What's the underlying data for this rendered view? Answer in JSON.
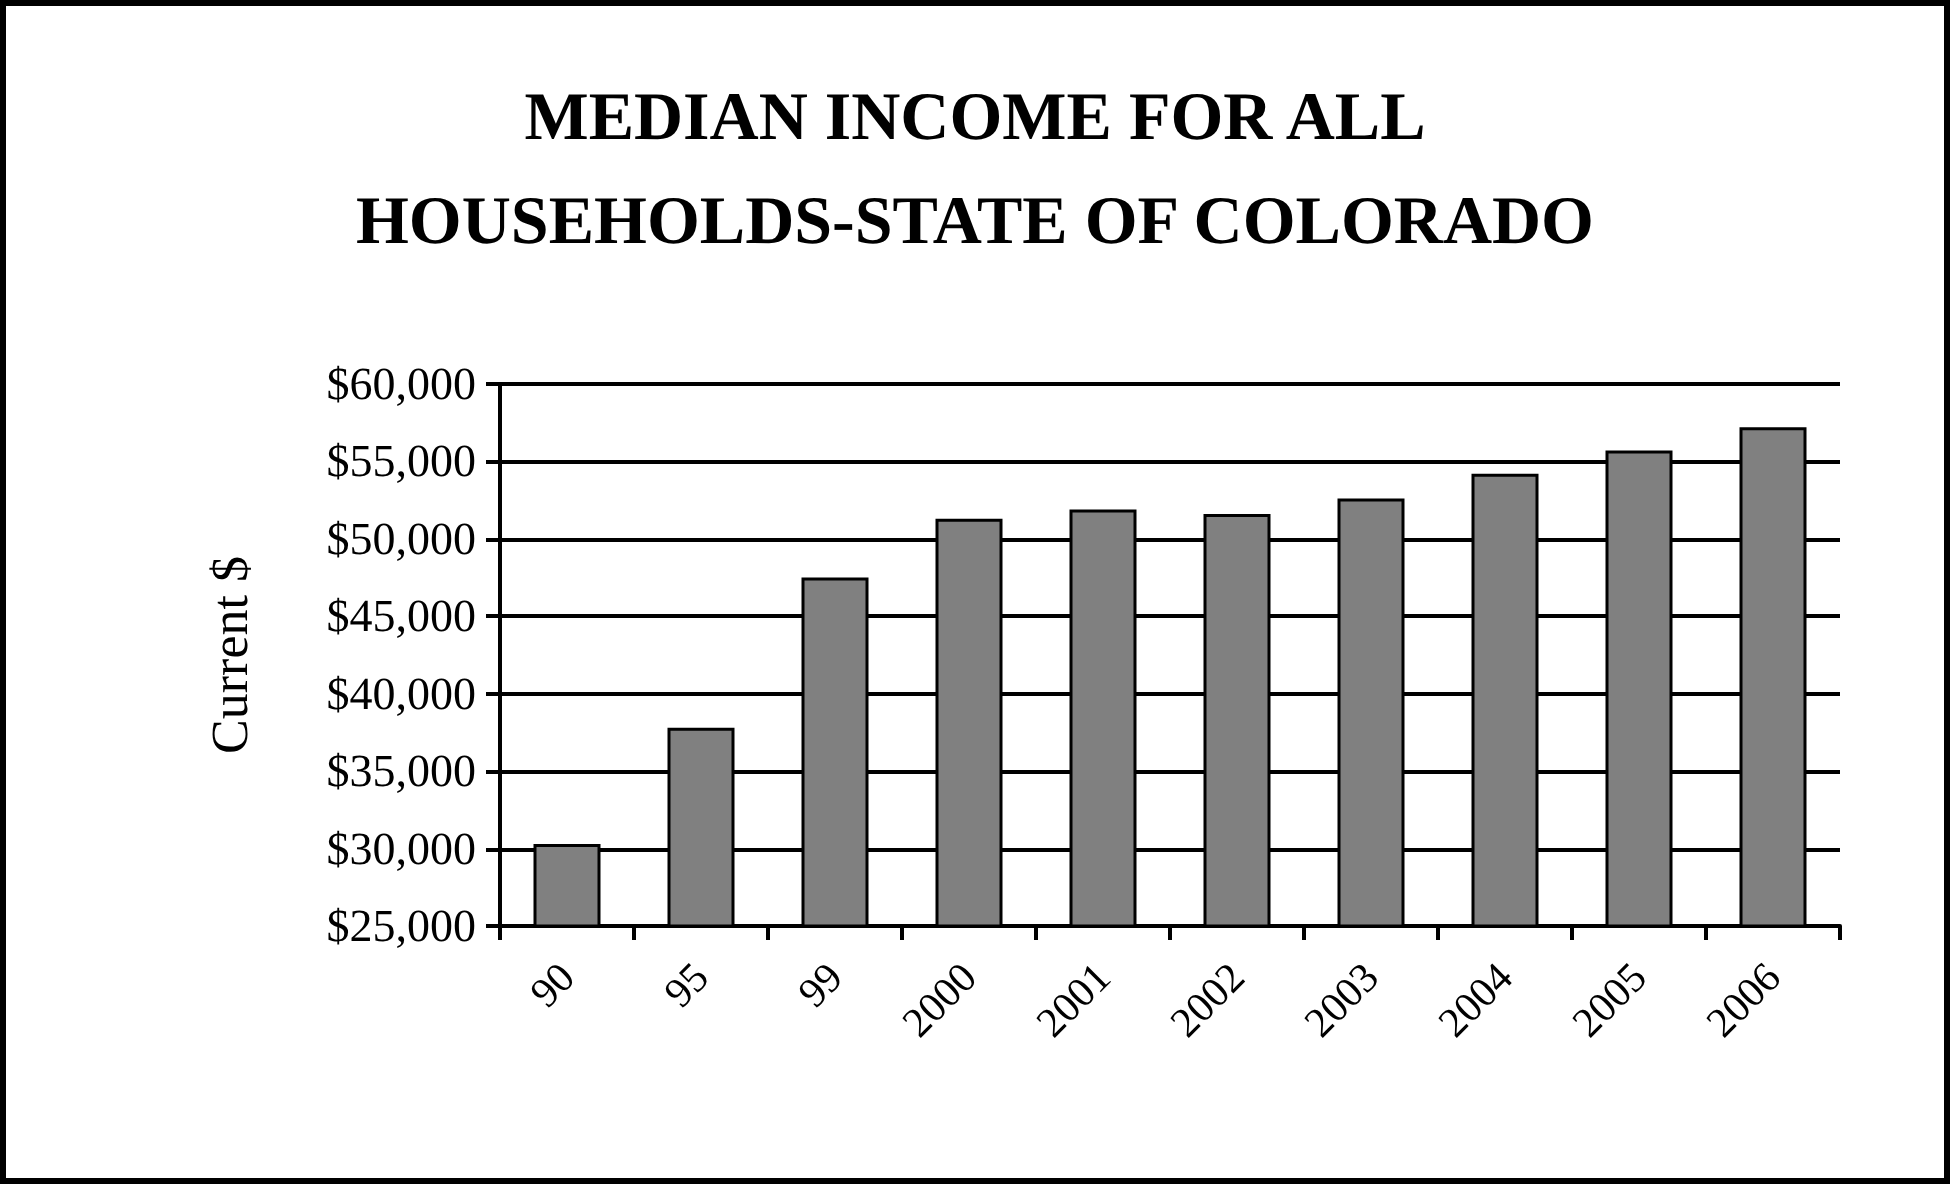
{
  "chart_data": {
    "type": "bar",
    "title": "MEDIAN INCOME FOR ALL\nHOUSEHOLDS-STATE OF COLORADO",
    "ylabel": "Current $",
    "categories": [
      "90",
      "95",
      "99",
      "2000",
      "2001",
      "2002",
      "2003",
      "2004",
      "2005",
      "2006"
    ],
    "values": [
      30300,
      37800,
      47500,
      51300,
      51900,
      51600,
      52600,
      54200,
      55700,
      57200
    ],
    "color": "#808080",
    "ylim": [
      25000,
      60000
    ],
    "yticks": [
      {
        "value": 25000,
        "label": "$25,000"
      },
      {
        "value": 30000,
        "label": "$30,000"
      },
      {
        "value": 35000,
        "label": "$35,000"
      },
      {
        "value": 40000,
        "label": "$40,000"
      },
      {
        "value": 45000,
        "label": "$45,000"
      },
      {
        "value": 50000,
        "label": "$50,000"
      },
      {
        "value": 55000,
        "label": "$55,000"
      },
      {
        "value": 60000,
        "label": "$60,000"
      }
    ],
    "grid": "y"
  }
}
